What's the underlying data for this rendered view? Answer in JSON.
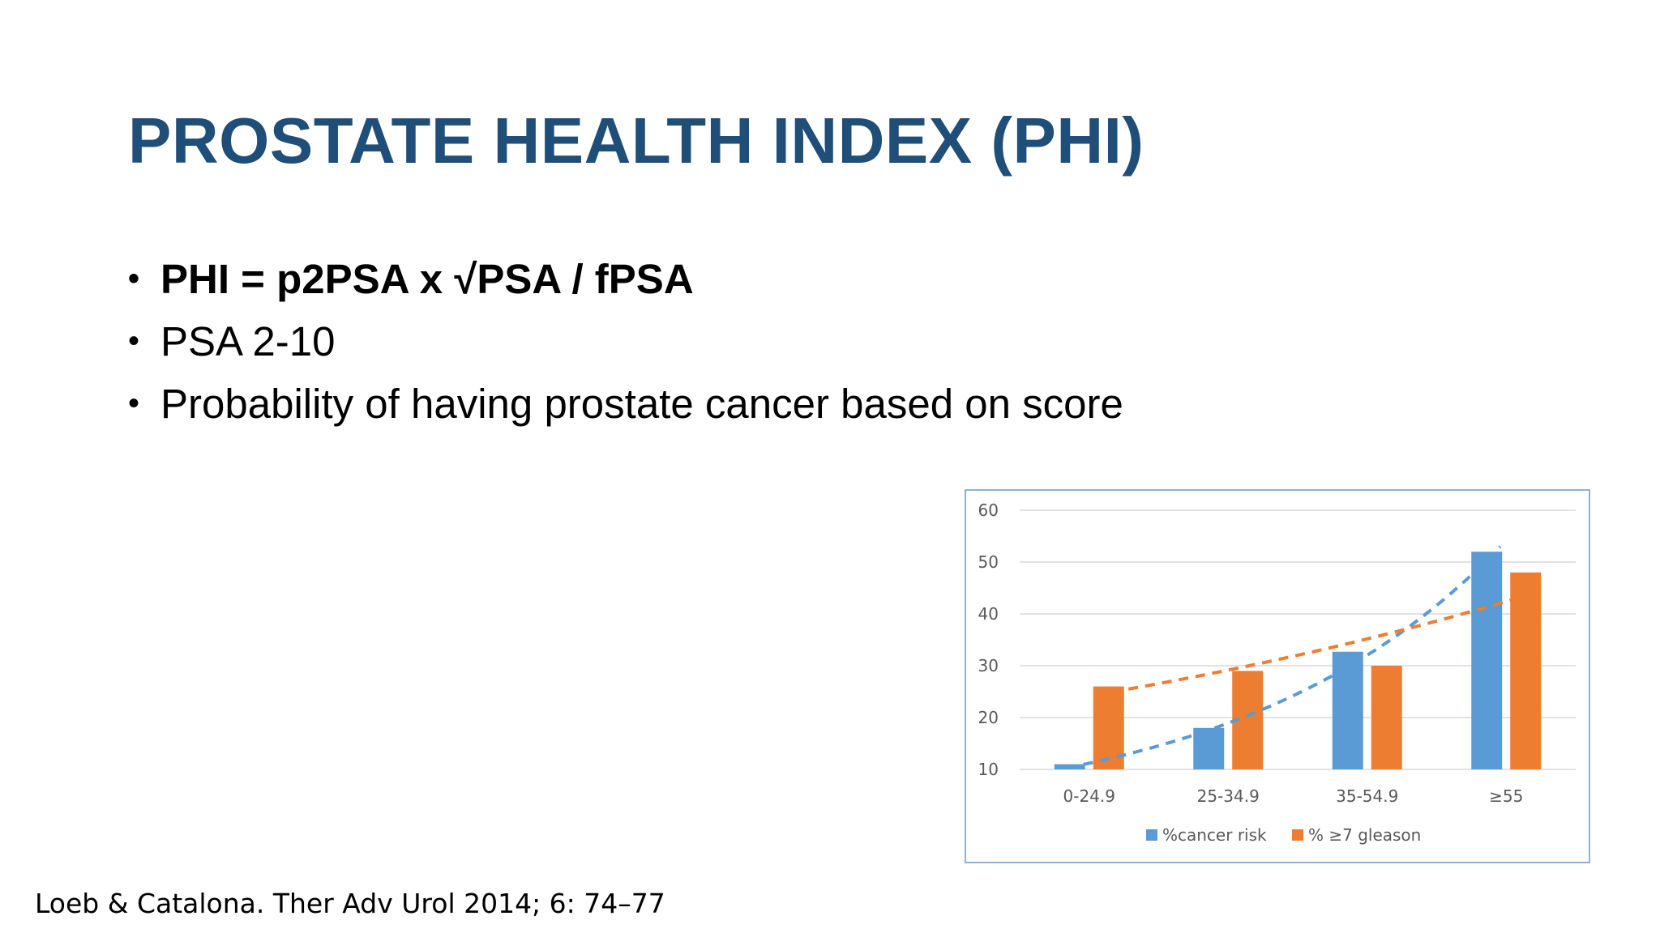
{
  "slide": {
    "title": "PROSTATE HEALTH INDEX (PHI)",
    "bullets": [
      {
        "text": "PHI = p2PSA x √PSA / fPSA",
        "bold": true
      },
      {
        "text": "PSA 2-10",
        "bold": false
      },
      {
        "text": "Probability of having prostate cancer based on score",
        "bold": false
      }
    ],
    "bullet_glyph": "•",
    "citation": "Loeb & Catalona. Ther Adv Urol 2014; 6: 74–77"
  },
  "chart_data": {
    "type": "bar",
    "categories": [
      "0-24.9",
      "25-34.9",
      "35-54.9",
      "≥55"
    ],
    "series": [
      {
        "name": "%cancer risk",
        "color": "#5b9bd5",
        "values": [
          11,
          18,
          32.7,
          52
        ]
      },
      {
        "name": "% ≥7 gleason",
        "color": "#ed7d31",
        "values": [
          26,
          29,
          30,
          48
        ]
      }
    ],
    "trendlines": [
      {
        "series": "%cancer risk",
        "style": "dashed",
        "type": "exponential",
        "color": "#5b9bd5"
      },
      {
        "series": "% ≥7 gleason",
        "style": "dashed",
        "type": "exponential",
        "color": "#ed7d31"
      }
    ],
    "yticks": [
      10,
      20,
      30,
      40,
      50,
      60
    ],
    "ylim": [
      10,
      60
    ],
    "grid": true,
    "legend_position": "bottom"
  }
}
